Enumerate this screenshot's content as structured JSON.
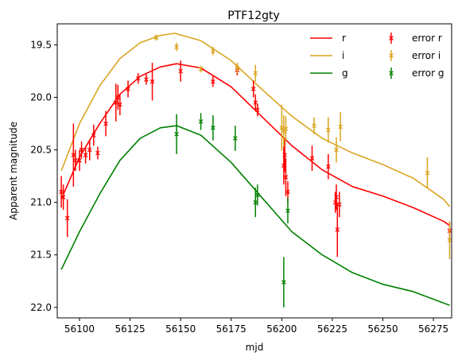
{
  "chart_data": {
    "type": "line",
    "title": "PTF12gty",
    "xlabel": "mjd",
    "ylabel": "Apparent magnitude",
    "xlim": [
      56089,
      56284
    ],
    "ylim": [
      22.1,
      19.3
    ],
    "y_inverted": true,
    "grid": false,
    "legend_position": "top-right",
    "x_ticks": [
      56100,
      56125,
      56150,
      56175,
      56200,
      56225,
      56250,
      56275
    ],
    "y_ticks": [
      19.5,
      20.0,
      20.5,
      21.0,
      21.5,
      22.0
    ],
    "x_tick_labels": [
      "56100",
      "56125",
      "56150",
      "56175",
      "56200",
      "56225",
      "56250",
      "56275"
    ],
    "y_tick_labels": [
      "19.5",
      "20.0",
      "20.5",
      "21.0",
      "21.5",
      "22.0"
    ],
    "legend": [
      {
        "label": "r",
        "kind": "line",
        "color": "#ff0000"
      },
      {
        "label": "error r",
        "kind": "errorbar",
        "color": "#ff0000"
      },
      {
        "label": "i",
        "kind": "line",
        "color": "#daa520"
      },
      {
        "label": "error i",
        "kind": "errorbar",
        "color": "#daa520"
      },
      {
        "label": "g",
        "kind": "line",
        "color": "#008000"
      },
      {
        "label": "error g",
        "kind": "errorbar",
        "color": "#008000"
      }
    ],
    "series": [
      {
        "name": "r",
        "kind": "line",
        "color": "#ff0000",
        "x": [
          56091,
          56100,
          56110,
          56120,
          56130,
          56140,
          56148,
          56160,
          56175,
          56190,
          56205,
          56220,
          56235,
          56250,
          56265,
          56280,
          56283
        ],
        "y": [
          20.97,
          20.57,
          20.25,
          19.97,
          19.8,
          19.71,
          19.68,
          19.72,
          19.9,
          20.18,
          20.46,
          20.69,
          20.85,
          20.94,
          21.05,
          21.18,
          21.22
        ]
      },
      {
        "name": "i",
        "kind": "line",
        "color": "#daa520",
        "x": [
          56091,
          56100,
          56110,
          56120,
          56130,
          56140,
          56147,
          56160,
          56175,
          56190,
          56205,
          56220,
          56235,
          56250,
          56265,
          56280,
          56283
        ],
        "y": [
          20.7,
          20.25,
          19.89,
          19.63,
          19.48,
          19.41,
          19.39,
          19.46,
          19.65,
          19.92,
          20.18,
          20.39,
          20.53,
          20.64,
          20.77,
          20.97,
          21.04
        ]
      },
      {
        "name": "g",
        "kind": "line",
        "color": "#008000",
        "x": [
          56091,
          56100,
          56110,
          56120,
          56130,
          56140,
          56148,
          56160,
          56175,
          56190,
          56205,
          56220,
          56235,
          56250,
          56265,
          56283
        ],
        "y": [
          21.64,
          21.28,
          20.92,
          20.6,
          20.39,
          20.29,
          20.27,
          20.36,
          20.62,
          20.95,
          21.28,
          21.5,
          21.67,
          21.78,
          21.85,
          21.98
        ]
      },
      {
        "name": "error r",
        "kind": "errorbar",
        "color": "#ff0000",
        "x": [
          56091,
          56092,
          56094,
          56097,
          56098,
          56100,
          56101,
          56103,
          56105,
          56107,
          56109,
          56113,
          56118,
          56119,
          56120,
          56124,
          56129,
          56133,
          56136,
          56150,
          56166,
          56178,
          56186,
          56187,
          56188,
          56201,
          56201.5,
          56202,
          56203,
          56215,
          56223,
          56226.5,
          56227,
          56227.5,
          56228.5,
          56283
        ],
        "y": [
          20.9,
          20.95,
          21.15,
          20.55,
          20.6,
          20.6,
          20.5,
          20.55,
          20.5,
          20.36,
          20.53,
          20.25,
          20.05,
          20.0,
          20.07,
          19.92,
          19.82,
          19.83,
          19.85,
          19.75,
          19.85,
          19.74,
          19.92,
          20.05,
          20.12,
          20.65,
          20.55,
          20.76,
          20.9,
          20.58,
          20.66,
          21.0,
          20.95,
          21.26,
          21.02,
          21.27
        ],
        "err": [
          0.15,
          0.12,
          0.18,
          0.3,
          0.1,
          0.1,
          0.08,
          0.08,
          0.1,
          0.1,
          0.06,
          0.12,
          0.18,
          0.12,
          0.1,
          0.08,
          0.05,
          0.05,
          0.18,
          0.1,
          0.05,
          0.05,
          0.08,
          0.08,
          0.06,
          0.18,
          0.16,
          0.18,
          0.1,
          0.12,
          0.12,
          0.1,
          0.12,
          0.26,
          0.12,
          0.08
        ]
      },
      {
        "name": "error i",
        "kind": "errorbar",
        "color": "#daa520",
        "x": [
          56138,
          56148,
          56160,
          56166,
          56178,
          56187,
          56200,
          56201,
          56202,
          56216,
          56223,
          56227,
          56229,
          56272,
          56283
        ],
        "y": [
          19.43,
          19.52,
          19.73,
          19.56,
          19.72,
          19.77,
          20.29,
          20.32,
          20.3,
          20.27,
          20.31,
          20.5,
          20.28,
          20.72,
          21.36
        ],
        "err": [
          0.03,
          0.04,
          0.03,
          0.04,
          0.05,
          0.08,
          0.22,
          0.15,
          0.12,
          0.08,
          0.12,
          0.12,
          0.14,
          0.15,
          0.18
        ]
      },
      {
        "name": "error g",
        "kind": "errorbar",
        "color": "#008000",
        "x": [
          56148,
          56160,
          56166,
          56177,
          56187,
          56188,
          56201,
          56203
        ],
        "y": [
          20.35,
          20.23,
          20.29,
          20.39,
          21.0,
          20.93,
          21.76,
          21.08
        ],
        "err": [
          0.19,
          0.08,
          0.12,
          0.12,
          0.14,
          0.1,
          0.24,
          0.12
        ]
      }
    ]
  }
}
